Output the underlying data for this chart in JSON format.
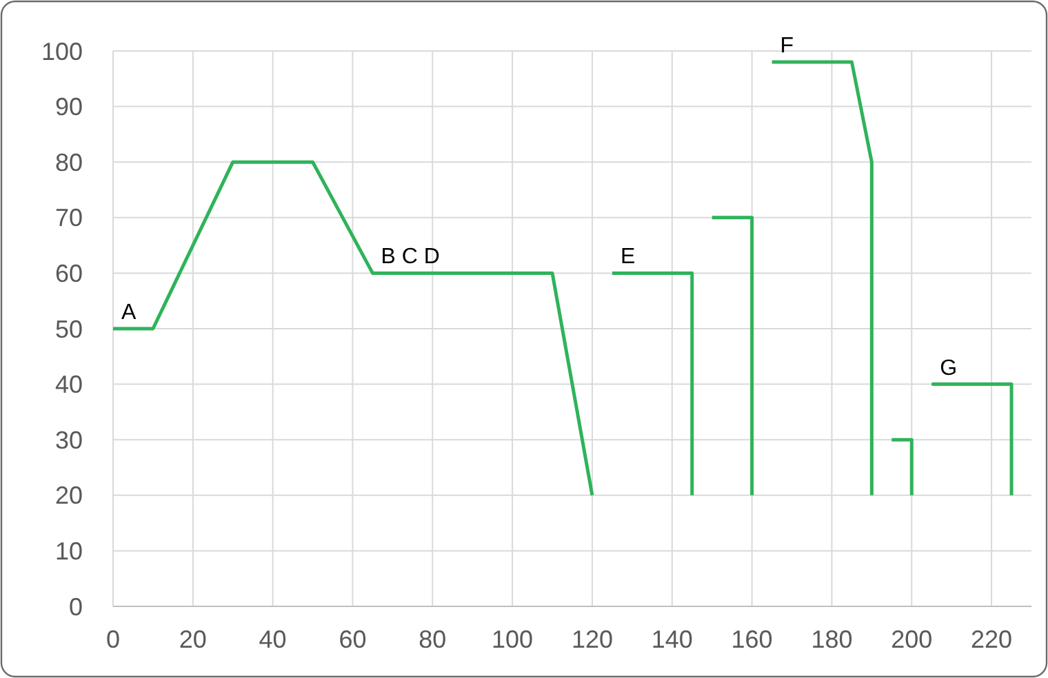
{
  "chart_data": {
    "type": "line",
    "xlim": [
      0,
      230
    ],
    "xticks": [
      0,
      20,
      40,
      60,
      80,
      100,
      120,
      140,
      160,
      180,
      200,
      220
    ],
    "ylim": [
      0,
      100
    ],
    "yticks": [
      0,
      10,
      20,
      30,
      40,
      50,
      60,
      70,
      80,
      90,
      100
    ],
    "grid": true,
    "marker": "none",
    "line_style": "solid",
    "series": [
      {
        "color": "#2fb35a",
        "x": [
          0,
          10,
          30,
          50,
          65,
          110,
          120,
          122,
          125,
          145,
          145,
          147,
          150,
          160,
          160,
          162,
          165,
          185,
          190,
          190,
          192,
          195,
          200,
          200,
          202,
          205,
          225,
          225
        ],
        "values": [
          50,
          50,
          80,
          80,
          60,
          60,
          20,
          null,
          60,
          60,
          20,
          null,
          70,
          70,
          20,
          null,
          98,
          98,
          80,
          20,
          null,
          30,
          30,
          20,
          null,
          40,
          40,
          20
        ]
      }
    ],
    "annotations": [
      {
        "text": "A",
        "x": 0,
        "y": 50
      },
      {
        "text": "B C D",
        "x": 65,
        "y": 60
      },
      {
        "text": "E",
        "x": 125,
        "y": 60
      },
      {
        "text": "F",
        "x": 165,
        "y": 98
      },
      {
        "text": "G",
        "x": 205,
        "y": 40
      }
    ]
  }
}
